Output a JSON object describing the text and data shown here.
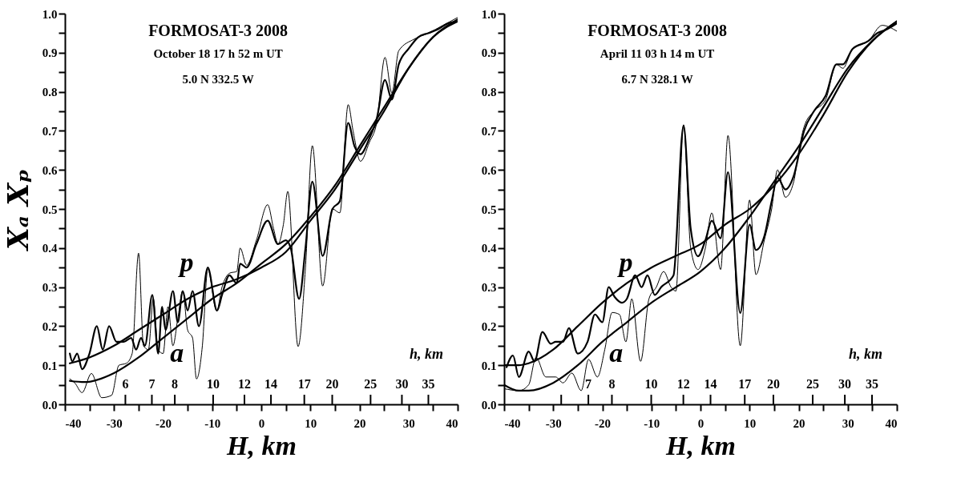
{
  "chart_data": [
    {
      "type": "line",
      "title": "FORMOSAT-3  2008",
      "subtitle": "October 18 17 h 52 m UT",
      "xlabel": "H, km",
      "ylabel": "Xₐ   Xₚ",
      "x2label": "h, km",
      "annotations": [
        "5.0 N   332.5 W",
        "p",
        "a"
      ],
      "xlim": [
        -40,
        40
      ],
      "ylim": [
        0,
        1
      ],
      "x2lim": [
        4.22,
        41.5
      ],
      "log": "x2",
      "xticks": [
        -40,
        {
          "value": -35,
          "label": null
        },
        -30,
        {
          "value": -25,
          "label": null
        },
        -20,
        {
          "value": -15,
          "label": null
        },
        -10,
        {
          "value": -5,
          "label": null
        },
        0,
        {
          "value": 5,
          "label": null
        },
        10,
        {
          "value": 15,
          "label": null
        },
        20,
        {
          "value": 25,
          "label": null
        },
        30,
        {
          "value": 35,
          "label": null
        },
        40
      ],
      "yticks": [
        {
          "value": 0,
          "label": "0.0"
        },
        {
          "value": 0.05,
          "label": null
        },
        {
          "value": 0.1,
          "label": "0.1"
        },
        {
          "value": 0.15,
          "label": null
        },
        {
          "value": 0.2,
          "label": "0.2"
        },
        {
          "value": 0.25,
          "label": null
        },
        {
          "value": 0.3,
          "label": "0.3"
        },
        {
          "value": 0.35,
          "label": null
        },
        {
          "value": 0.4,
          "label": "0.4"
        },
        {
          "value": 0.45,
          "label": null
        },
        {
          "value": 0.5,
          "label": "0.5"
        },
        {
          "value": 0.55,
          "label": null
        },
        {
          "value": 0.6,
          "label": "0.6"
        },
        {
          "value": 0.65,
          "label": null
        },
        {
          "value": 0.7,
          "label": "0.7"
        },
        {
          "value": 0.75,
          "label": null
        },
        {
          "value": 0.8,
          "label": "0.8"
        },
        {
          "value": 0.85,
          "label": null
        },
        {
          "value": 0.9,
          "label": "0.9"
        },
        {
          "value": 0.95,
          "label": null
        },
        {
          "value": 1,
          "label": "1.0"
        }
      ],
      "x2ticks": [
        6,
        7,
        8,
        10,
        12,
        14,
        17,
        20,
        25,
        30,
        35
      ],
      "grid": false,
      "line_style": "solid",
      "series": [
        {
          "color": "#000000",
          "x": [
            -39,
            -38,
            -36.5,
            -34.6,
            -32.5,
            -30.5,
            -29,
            -27.5,
            -26.3,
            -25,
            -24,
            -23,
            -22,
            -21,
            -20,
            -19,
            -18,
            -17,
            -16,
            -15,
            -14,
            -13.2,
            -12,
            -10.9,
            -9.1,
            -8,
            -6.4,
            -5,
            -4.3,
            -3,
            -1,
            1.3,
            2.5,
            3.4,
            4.5,
            5.4,
            7.5,
            9,
            10.4,
            12.5,
            14.5,
            16,
            17.7,
            18.7,
            20.2,
            22,
            23.5,
            25.2,
            26.6,
            28,
            31.2,
            34,
            37,
            40
          ],
          "values": [
            0.065,
            0.055,
            0.03,
            0.079,
            0.017,
            0.023,
            0.1,
            0.105,
            0.13,
            0.387,
            0.15,
            0.14,
            0.27,
            0.14,
            0.13,
            0.25,
            0.15,
            0.22,
            0.29,
            0.19,
            0.17,
            0.065,
            0.15,
            0.346,
            0.239,
            0.3,
            0.336,
            0.34,
            0.4,
            0.356,
            0.42,
            0.511,
            0.45,
            0.41,
            0.46,
            0.545,
            0.148,
            0.35,
            0.662,
            0.303,
            0.5,
            0.49,
            0.767,
            0.7,
            0.622,
            0.67,
            0.72,
            0.888,
            0.797,
            0.905,
            0.935,
            0.95,
            0.97,
            0.99
          ]
        },
        {
          "color": "#000000",
          "x": [
            -39,
            -38.5,
            -37.5,
            -36.5,
            -35,
            -33.5,
            -32.3,
            -31,
            -29.5,
            -28,
            -26.5,
            -25.5,
            -24.5,
            -23.7,
            -22.2,
            -21,
            -20.2,
            -19.5,
            -18,
            -17,
            -16,
            -15,
            -14,
            -12.7,
            -10.9,
            -9,
            -8,
            -6.5,
            -5,
            -4.3,
            -3,
            -1,
            1.3,
            3.4,
            5,
            6,
            7.7,
            9,
            10.4,
            12.5,
            14.5,
            16,
            17.7,
            19,
            20.2,
            22,
            23.5,
            25.2,
            26.6,
            28,
            30,
            32,
            34,
            36,
            38,
            40
          ],
          "values": [
            0.13,
            0.11,
            0.13,
            0.09,
            0.13,
            0.2,
            0.14,
            0.2,
            0.16,
            0.16,
            0.17,
            0.14,
            0.17,
            0.15,
            0.28,
            0.13,
            0.25,
            0.19,
            0.29,
            0.21,
            0.29,
            0.24,
            0.29,
            0.2,
            0.35,
            0.24,
            0.28,
            0.33,
            0.31,
            0.36,
            0.35,
            0.41,
            0.47,
            0.41,
            0.42,
            0.4,
            0.27,
            0.4,
            0.57,
            0.38,
            0.5,
            0.52,
            0.72,
            0.66,
            0.64,
            0.68,
            0.73,
            0.83,
            0.78,
            0.87,
            0.91,
            0.94,
            0.95,
            0.96,
            0.975,
            0.98
          ]
        },
        {
          "color": "#000000",
          "x": [
            -39,
            -35,
            -30,
            -25,
            -20,
            -15,
            -10,
            -5,
            0,
            5,
            10,
            15,
            20,
            25,
            30,
            35,
            40
          ],
          "values": [
            0.105,
            0.12,
            0.15,
            0.19,
            0.23,
            0.27,
            0.3,
            0.32,
            0.35,
            0.39,
            0.47,
            0.55,
            0.65,
            0.75,
            0.86,
            0.94,
            0.985
          ]
        },
        {
          "color": "#000000",
          "x": [
            -39,
            -36,
            -30,
            -25,
            -20,
            -15,
            -10,
            -5,
            0,
            5,
            10,
            15,
            20,
            25,
            30,
            35,
            40
          ],
          "values": [
            0.06,
            0.057,
            0.08,
            0.12,
            0.17,
            0.22,
            0.27,
            0.31,
            0.36,
            0.41,
            0.48,
            0.56,
            0.66,
            0.76,
            0.86,
            0.94,
            0.98
          ]
        }
      ]
    },
    {
      "type": "line",
      "title": "FORMOSAT-3  2008",
      "subtitle": "April 11 03 h 14 m UT",
      "xlabel": "H, km",
      "x2label": "h, km",
      "annotations": [
        "6.7 N 328.1 W",
        "p",
        "a"
      ],
      "xlim": [
        -40,
        40
      ],
      "ylim": [
        0,
        1
      ],
      "x2lim": [
        4.34,
        40.3
      ],
      "log": "x2",
      "xticks": [
        -40,
        {
          "value": -35,
          "label": null
        },
        -30,
        {
          "value": -25,
          "label": null
        },
        -20,
        {
          "value": -15,
          "label": null
        },
        -10,
        {
          "value": -5,
          "label": null
        },
        0,
        {
          "value": 5,
          "label": null
        },
        10,
        {
          "value": 15,
          "label": null
        },
        20,
        {
          "value": 25,
          "label": null
        },
        30,
        {
          "value": 35,
          "label": null
        },
        40
      ],
      "yticks": [
        {
          "value": 0,
          "label": "0.0"
        },
        {
          "value": 0.05,
          "label": null
        },
        {
          "value": 0.1,
          "label": "0.1"
        },
        {
          "value": 0.15,
          "label": null
        },
        {
          "value": 0.2,
          "label": "0.2"
        },
        {
          "value": 0.25,
          "label": null
        },
        {
          "value": 0.3,
          "label": "0.3"
        },
        {
          "value": 0.35,
          "label": null
        },
        {
          "value": 0.4,
          "label": "0.4"
        },
        {
          "value": 0.45,
          "label": null
        },
        {
          "value": 0.5,
          "label": "0.5"
        },
        {
          "value": 0.55,
          "label": null
        },
        {
          "value": 0.6,
          "label": "0.6"
        },
        {
          "value": 0.65,
          "label": null
        },
        {
          "value": 0.7,
          "label": "0.7"
        },
        {
          "value": 0.75,
          "label": null
        },
        {
          "value": 0.8,
          "label": "0.8"
        },
        {
          "value": 0.85,
          "label": null
        },
        {
          "value": 0.9,
          "label": "0.9"
        },
        {
          "value": 0.95,
          "label": null
        },
        {
          "value": 1,
          "label": "1.0"
        }
      ],
      "x2ticks": [
        {
          "value": 6,
          "label": null
        },
        7,
        8,
        10,
        12,
        14,
        17,
        20,
        25,
        30,
        35
      ],
      "grid": false,
      "line_style": "solid",
      "series": [
        {
          "color": "#000000",
          "x": [
            -40,
            -37,
            -35,
            -33.5,
            -31.5,
            -29.5,
            -28,
            -26.2,
            -24.3,
            -22.8,
            -21,
            -19.5,
            -18,
            -16.5,
            -15.2,
            -14,
            -12.2,
            -10.5,
            -9,
            -7.5,
            -6,
            -5,
            -3.45,
            -2,
            -0.5,
            1,
            2.3,
            4.1,
            5.6,
            8.1,
            10,
            11.3,
            13,
            14.5,
            15.7,
            17.3,
            19,
            19.9,
            21.1,
            23.1,
            25.5,
            27.7,
            29,
            31,
            34.2,
            37,
            40
          ],
          "values": [
            0.04,
            0.035,
            0.05,
            0.12,
            0.07,
            0.07,
            0.055,
            0.08,
            0.035,
            0.115,
            0.07,
            0.14,
            0.235,
            0.23,
            0.16,
            0.27,
            0.11,
            0.27,
            0.3,
            0.34,
            0.3,
            0.29,
            0.714,
            0.4,
            0.345,
            0.4,
            0.49,
            0.345,
            0.688,
            0.15,
            0.523,
            0.332,
            0.42,
            0.5,
            0.6,
            0.53,
            0.57,
            0.64,
            0.71,
            0.75,
            0.78,
            0.87,
            0.86,
            0.91,
            0.93,
            0.97,
            0.955
          ]
        },
        {
          "color": "#000000",
          "x": [
            -39.5,
            -38.2,
            -37,
            -35,
            -33.8,
            -32.2,
            -30.5,
            -29.5,
            -28,
            -26.8,
            -25,
            -23,
            -21.5,
            -20,
            -18.7,
            -17.5,
            -16,
            -15,
            -13.3,
            -12,
            -10.8,
            -9.3,
            -8,
            -5.5,
            -3.45,
            -2,
            -0.5,
            1,
            2.3,
            4.1,
            5.6,
            8.1,
            10,
            11.3,
            13,
            14.5,
            15.7,
            17.3,
            19,
            21.1,
            23.1,
            25.5,
            27.7,
            29,
            31,
            34.2,
            36,
            38,
            40
          ],
          "values": [
            0.095,
            0.125,
            0.07,
            0.135,
            0.11,
            0.185,
            0.155,
            0.16,
            0.16,
            0.195,
            0.13,
            0.16,
            0.23,
            0.21,
            0.3,
            0.275,
            0.26,
            0.27,
            0.33,
            0.3,
            0.33,
            0.28,
            0.3,
            0.33,
            0.714,
            0.45,
            0.379,
            0.42,
            0.47,
            0.425,
            0.594,
            0.234,
            0.46,
            0.395,
            0.43,
            0.52,
            0.58,
            0.55,
            0.585,
            0.7,
            0.75,
            0.79,
            0.87,
            0.87,
            0.91,
            0.93,
            0.95,
            0.96,
            0.975
          ]
        },
        {
          "color": "#000000",
          "x": [
            -40,
            -37,
            -35,
            -30,
            -25,
            -20,
            -15,
            -10,
            -5,
            0,
            5,
            10,
            15,
            20,
            25,
            30,
            35,
            40
          ],
          "values": [
            0.1,
            0.1,
            0.105,
            0.14,
            0.2,
            0.26,
            0.31,
            0.35,
            0.38,
            0.41,
            0.46,
            0.5,
            0.56,
            0.64,
            0.74,
            0.85,
            0.93,
            0.98
          ]
        },
        {
          "color": "#000000",
          "x": [
            -40,
            -37,
            -35,
            -30,
            -25,
            -20,
            -15,
            -10,
            -5,
            0,
            5,
            10,
            15,
            20,
            25,
            30,
            35,
            40
          ],
          "values": [
            0.05,
            0.035,
            0.035,
            0.055,
            0.1,
            0.16,
            0.21,
            0.26,
            0.3,
            0.34,
            0.4,
            0.48,
            0.57,
            0.66,
            0.76,
            0.86,
            0.93,
            0.98
          ]
        }
      ]
    }
  ]
}
